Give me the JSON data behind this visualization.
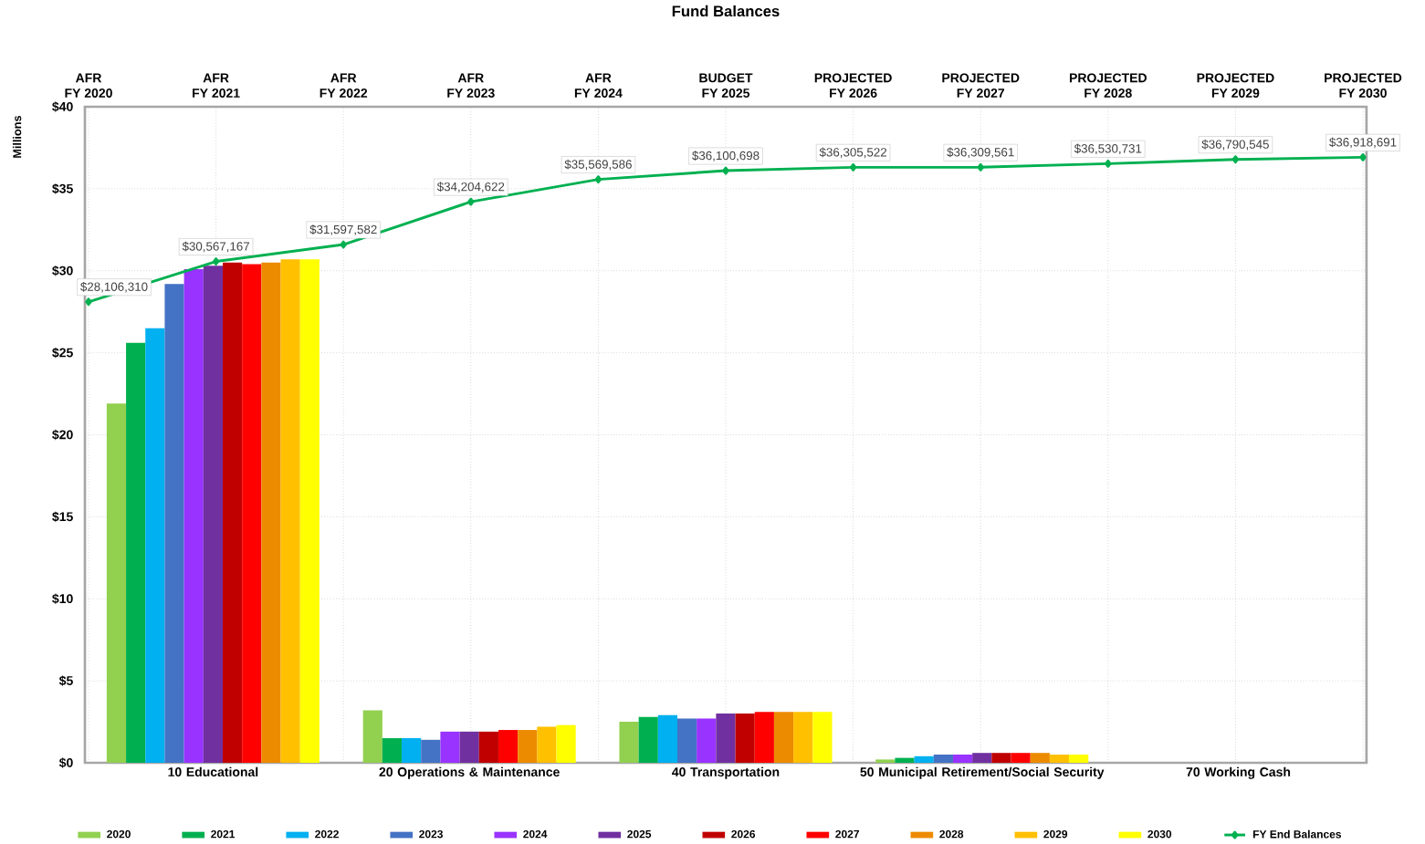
{
  "chart_data": [
    {
      "type": "bar",
      "title": "Fund Balances",
      "ylabel": "Millions",
      "categories": [
        "10 Educational",
        "20 Operations & Maintenance",
        "40 Transportation",
        "50 Municipal Retirement/Social Security",
        "70 Working Cash"
      ],
      "series": [
        {
          "name": "2020",
          "color": "#92d050",
          "values": [
            21.9,
            3.2,
            2.5,
            0.2,
            0
          ]
        },
        {
          "name": "2021",
          "color": "#00b050",
          "values": [
            25.6,
            1.5,
            2.8,
            0.3,
            0
          ]
        },
        {
          "name": "2022",
          "color": "#00b0f0",
          "values": [
            26.5,
            1.5,
            2.9,
            0.4,
            0
          ]
        },
        {
          "name": "2023",
          "color": "#4472c4",
          "values": [
            29.2,
            1.4,
            2.7,
            0.5,
            0
          ]
        },
        {
          "name": "2024",
          "color": "#9933ff",
          "values": [
            30.1,
            1.9,
            2.7,
            0.5,
            0
          ]
        },
        {
          "name": "2025",
          "color": "#7030a0",
          "values": [
            30.3,
            1.9,
            3.0,
            0.6,
            0
          ]
        },
        {
          "name": "2026",
          "color": "#c00000",
          "values": [
            30.5,
            1.9,
            3.0,
            0.6,
            0
          ]
        },
        {
          "name": "2027",
          "color": "#ff0000",
          "values": [
            30.4,
            2.0,
            3.1,
            0.6,
            0
          ]
        },
        {
          "name": "2028",
          "color": "#ed8b00",
          "values": [
            30.5,
            2.0,
            3.1,
            0.6,
            0
          ]
        },
        {
          "name": "2029",
          "color": "#ffc000",
          "values": [
            30.7,
            2.2,
            3.1,
            0.5,
            0
          ]
        },
        {
          "name": "2030",
          "color": "#ffff00",
          "values": [
            30.7,
            2.3,
            3.1,
            0.5,
            0
          ]
        }
      ],
      "ylim": [
        0,
        40
      ],
      "yticks": [
        {
          "value": 0,
          "label": "$0"
        },
        {
          "value": 5,
          "label": "$5"
        },
        {
          "value": 10,
          "label": "$10"
        },
        {
          "value": 15,
          "label": "$15"
        },
        {
          "value": 20,
          "label": "$20"
        },
        {
          "value": 25,
          "label": "$25"
        },
        {
          "value": 30,
          "label": "$30"
        },
        {
          "value": 35,
          "label": "$35"
        },
        {
          "value": 40,
          "label": "$40"
        }
      ],
      "grid": "y",
      "legend": "bottom"
    },
    {
      "type": "line",
      "categories": [
        "AFR FY 2020",
        "AFR FY 2021",
        "AFR FY 2022",
        "AFR FY 2023",
        "AFR FY 2024",
        "BUDGET FY 2025",
        "PROJECTED FY 2026",
        "PROJECTED FY 2027",
        "PROJECTED FY 2028",
        "PROJECTED FY 2029",
        "PROJECTED FY 2030"
      ],
      "series": [
        {
          "name": "FY End Balances",
          "color": "#00b050",
          "values": [
            28106310,
            30567167,
            31597582,
            34204622,
            35569586,
            36100698,
            36305522,
            36309561,
            36530731,
            36790545,
            36918691
          ],
          "value_labels": [
            "$28,106,310",
            "$30,567,167",
            "$31,597,582",
            "$34,204,622",
            "$35,569,586",
            "$36,100,698",
            "$36,305,522",
            "$36,309,561",
            "$36,530,731",
            "$36,790,545",
            "$36,918,691"
          ]
        }
      ],
      "ylim": [
        0,
        40000000
      ],
      "tick_labels": "x",
      "grid": "x",
      "legend": "bottom",
      "marker": "diamond"
    }
  ]
}
